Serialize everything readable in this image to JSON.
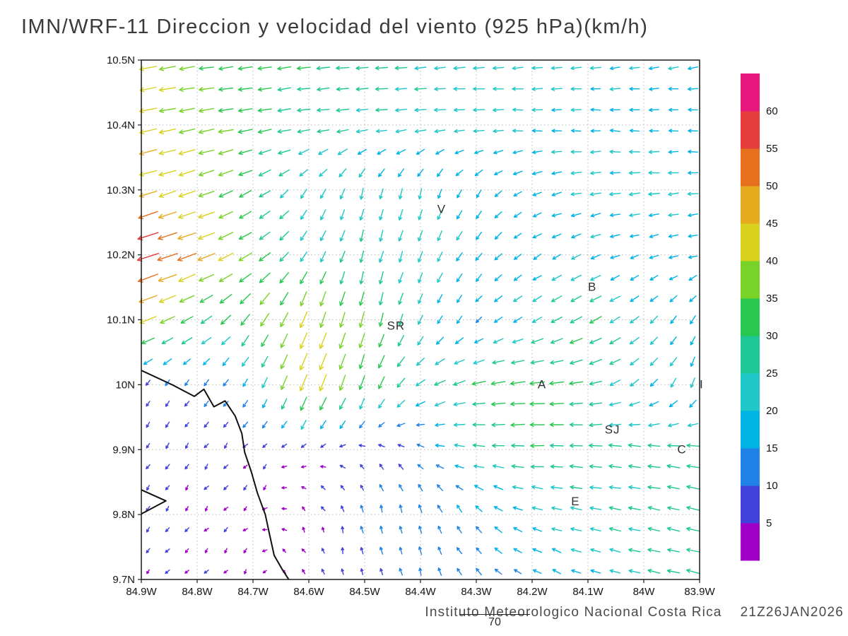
{
  "title": "IMN/WRF-11 Direccion y velocidad del viento (925 hPa)(km/h)",
  "footer": {
    "credit": "Instituto Meteorologico Nacional Costa Rica",
    "timestamp": "21Z26JAN2026",
    "forecast_hour": "70"
  },
  "axes": {
    "x_tick_labels": [
      "84.9W",
      "84.8W",
      "84.7W",
      "84.6W",
      "84.5W",
      "84.4W",
      "84.3W",
      "84.2W",
      "84.1W",
      "84W",
      "83.9W"
    ],
    "y_tick_labels": [
      "10.5N",
      "10.4N",
      "10.3N",
      "10.2N",
      "10.1N",
      "10N",
      "9.9N",
      "9.8N",
      "9.7N"
    ]
  },
  "chart_data": {
    "type": "vector_field",
    "title": "IMN/WRF-11 Direccion y velocidad del viento (925 hPa)(km/h)",
    "units": "km/h",
    "level_hPa": 925,
    "lon_range": [
      -84.9,
      -83.9
    ],
    "lat_range": [
      9.7,
      10.5
    ],
    "grid_lons": [
      -84.9,
      -84.8,
      -84.7,
      -84.6,
      -84.5,
      -84.4,
      -84.3,
      -84.2,
      -84.1,
      -84.0,
      -83.9
    ],
    "grid_lats": [
      10.5,
      10.4,
      10.3,
      10.2,
      10.1,
      10.0,
      9.9,
      9.8,
      9.7
    ],
    "u_kmh": [
      [
        -41,
        -35,
        -32,
        -29,
        -27,
        -25,
        -24,
        -22,
        -21,
        -20,
        -19
      ],
      [
        -42,
        -37,
        -32,
        -28,
        -25,
        -23,
        -22,
        -21,
        -19,
        -18,
        -17
      ],
      [
        -45,
        -38,
        -26,
        -12,
        -6,
        -6,
        -9,
        -16,
        -21,
        -23,
        -21
      ],
      [
        -57,
        -46,
        -28,
        -12,
        -6,
        -8,
        -12,
        -14,
        -18,
        -15,
        -16
      ],
      [
        -42,
        -25,
        -20,
        -15,
        -8,
        -8,
        -10,
        -20,
        -28,
        -15,
        -9
      ],
      [
        -5,
        -6,
        -9,
        -18,
        -12,
        -20,
        -30,
        -36,
        -28,
        -17,
        -7
      ],
      [
        -4,
        -4,
        -4,
        -5,
        -6,
        -10,
        -24,
        -31,
        -29,
        -26,
        -28
      ],
      [
        -3,
        -3,
        -3,
        -3,
        -2,
        -4,
        -10,
        -19,
        -23,
        -26,
        -27
      ],
      [
        -3,
        -3,
        -2,
        -2,
        -2,
        -3,
        -8,
        -13,
        -19,
        -25,
        -28
      ]
    ],
    "v_kmh": [
      [
        -7,
        -5,
        -4,
        -3,
        -2,
        -2,
        -2,
        -2,
        -3,
        -3,
        -3
      ],
      [
        -9,
        -7,
        -5,
        -3,
        -2,
        -1,
        0,
        0,
        1,
        1,
        1
      ],
      [
        -14,
        -13,
        -14,
        -18,
        -22,
        -20,
        -14,
        -6,
        -3,
        -2,
        -2
      ],
      [
        -19,
        -17,
        -17,
        -21,
        -25,
        -22,
        -15,
        -9,
        -8,
        -4,
        -4
      ],
      [
        -17,
        -14,
        -28,
        -40,
        -35,
        -18,
        -10,
        -10,
        -14,
        -13,
        -15
      ],
      [
        -8,
        -7,
        -14,
        -44,
        -32,
        -14,
        -6,
        -3,
        -6,
        -14,
        -20
      ],
      [
        -6,
        -5,
        -4,
        -2,
        3,
        5,
        2,
        0,
        2,
        4,
        3
      ],
      [
        -5,
        -4,
        -3,
        4,
        10,
        14,
        12,
        6,
        4,
        5,
        6
      ],
      [
        -4,
        -3,
        -2,
        3,
        8,
        12,
        10,
        8,
        6,
        6,
        7
      ]
    ],
    "display_grid": {
      "nx": 29,
      "ny": 25
    },
    "speed_bins": [
      5,
      10,
      15,
      20,
      25,
      30,
      35,
      40,
      45,
      50,
      55,
      60
    ],
    "bin_colors": [
      "#a000c8",
      "#4141dc",
      "#1e82e6",
      "#00b4e6",
      "#1ec8c8",
      "#1ec896",
      "#28c850",
      "#78d228",
      "#d8d21e",
      "#e6aa1e",
      "#e6701e",
      "#e63c3c",
      "#e6187d"
    ],
    "stations": [
      {
        "label": "V",
        "lon": -84.37,
        "lat": 10.27
      },
      {
        "label": "B",
        "lon": -84.1,
        "lat": 10.15
      },
      {
        "label": "SR",
        "lon": -84.46,
        "lat": 10.09
      },
      {
        "label": "A",
        "lon": -84.19,
        "lat": 10.0
      },
      {
        "label": "I",
        "lon": -83.9,
        "lat": 10.0
      },
      {
        "label": "SJ",
        "lon": -84.07,
        "lat": 9.93
      },
      {
        "label": "C",
        "lon": -83.94,
        "lat": 9.9
      },
      {
        "label": "E",
        "lon": -84.13,
        "lat": 9.82
      }
    ],
    "coastline": [
      [
        [
          -84.9,
          10.022
        ],
        [
          -84.845,
          10.0
        ],
        [
          -84.805,
          9.982
        ],
        [
          -84.788,
          9.993
        ],
        [
          -84.77,
          9.966
        ],
        [
          -84.75,
          9.975
        ],
        [
          -84.732,
          9.952
        ],
        [
          -84.72,
          9.925
        ],
        [
          -84.715,
          9.896
        ],
        [
          -84.703,
          9.866
        ],
        [
          -84.692,
          9.833
        ],
        [
          -84.678,
          9.8
        ],
        [
          -84.67,
          9.768
        ],
        [
          -84.662,
          9.737
        ],
        [
          -84.648,
          9.716
        ],
        [
          -84.636,
          9.7
        ]
      ],
      [
        [
          -84.9,
          9.838
        ],
        [
          -84.856,
          9.821
        ],
        [
          -84.9,
          9.801
        ]
      ]
    ]
  }
}
